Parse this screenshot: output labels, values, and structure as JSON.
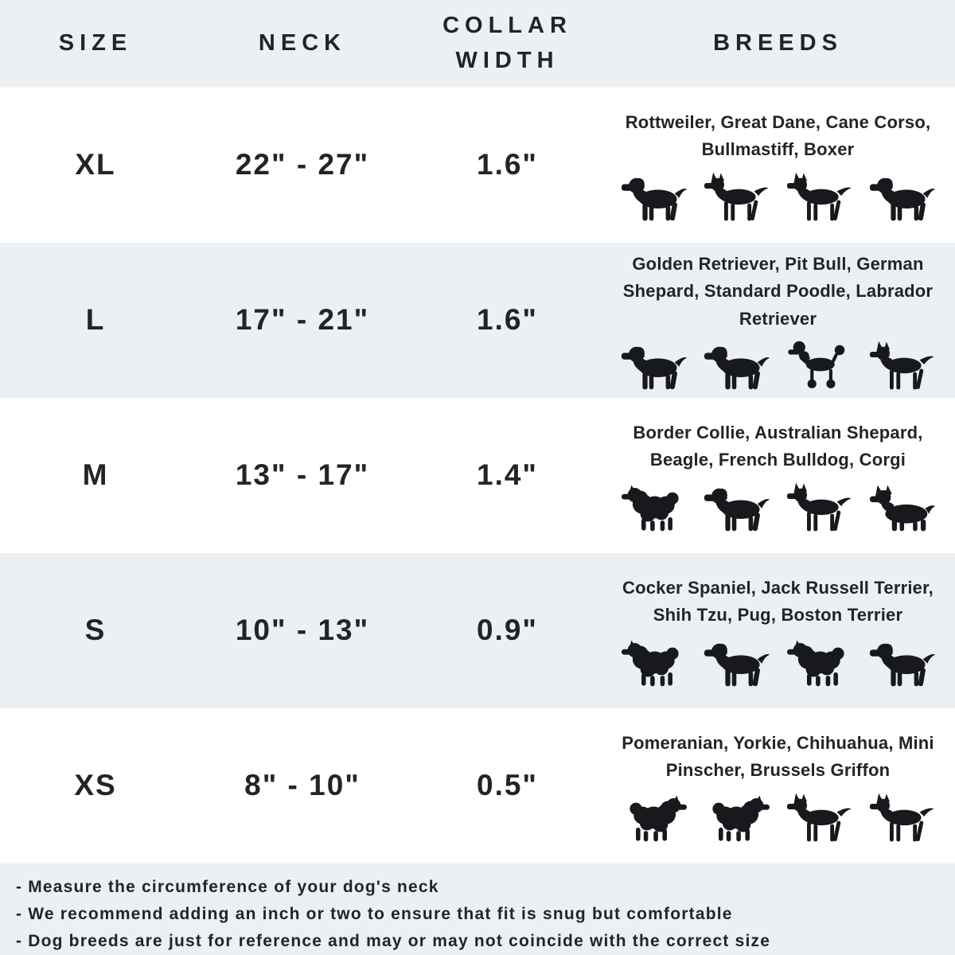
{
  "palette": {
    "row_alt_bg": "#edf0f2",
    "row_bg": "#ffffff",
    "text": "#212529",
    "silhouette": "#17191d"
  },
  "header": {
    "columns": [
      "SIZE",
      "NECK",
      "COLLAR WIDTH",
      "BREEDS"
    ]
  },
  "rows": [
    {
      "size": "XL",
      "neck": "22\" - 27\"",
      "collar_width": "1.6\"",
      "breeds": "Rottweiler, Great Dane, Cane Corso, Bullmastiff, Boxer",
      "icons": [
        {
          "name": "rottweiler-icon",
          "shape": "dog-standing"
        },
        {
          "name": "great-dane-icon",
          "shape": "dog-pointy"
        },
        {
          "name": "cane-corso-icon",
          "shape": "dog-pointy"
        },
        {
          "name": "bullmastiff-icon",
          "shape": "dog-standing"
        }
      ]
    },
    {
      "size": "L",
      "neck": "17\" - 21\"",
      "collar_width": "1.6\"",
      "breeds": "Golden Retriever, Pit Bull, German Shepard, Standard Poodle, Labrador Retriever",
      "icons": [
        {
          "name": "golden-retriever-icon",
          "shape": "dog-standing"
        },
        {
          "name": "labrador-retriever-icon",
          "shape": "dog-standing"
        },
        {
          "name": "standard-poodle-icon",
          "shape": "dog-poodle"
        },
        {
          "name": "german-shepard-icon",
          "shape": "dog-pointy"
        }
      ]
    },
    {
      "size": "M",
      "neck": "13\" - 17\"",
      "collar_width": "1.4\"",
      "breeds": "Border Collie, Australian Shepard, Beagle, French Bulldog, Corgi",
      "icons": [
        {
          "name": "australian-shepard-icon",
          "shape": "dog-fluffy"
        },
        {
          "name": "beagle-icon",
          "shape": "dog-standing"
        },
        {
          "name": "french-bulldog-icon",
          "shape": "dog-pointy"
        },
        {
          "name": "corgi-icon",
          "shape": "dog-corgi"
        }
      ]
    },
    {
      "size": "S",
      "neck": "10\" - 13\"",
      "collar_width": "0.9\"",
      "breeds": "Cocker Spaniel, Jack Russell Terrier, Shih Tzu, Pug, Boston Terrier",
      "icons": [
        {
          "name": "cocker-spaniel-icon",
          "shape": "dog-fluffy"
        },
        {
          "name": "jack-russell-terrier-icon",
          "shape": "dog-standing"
        },
        {
          "name": "shih-tzu-icon",
          "shape": "dog-fluffy"
        },
        {
          "name": "pug-icon",
          "shape": "dog-standing"
        }
      ]
    },
    {
      "size": "XS",
      "neck": "8\" - 10\"",
      "collar_width": "0.5\"",
      "breeds": "Pomeranian, Yorkie, Chihuahua, Mini Pinscher, Brussels Griffon",
      "icons": [
        {
          "name": "pomeranian-icon",
          "shape": "dog-fluffy",
          "flip": true
        },
        {
          "name": "yorkie-icon",
          "shape": "dog-fluffy",
          "flip": true
        },
        {
          "name": "chihuahua-icon",
          "shape": "dog-pointy"
        },
        {
          "name": "mini-pinscher-icon",
          "shape": "dog-pointy"
        }
      ]
    }
  ],
  "notes": [
    "- Measure the circumference of your dog's neck",
    "- We recommend adding an inch or two to ensure that fit is snug but comfortable",
    "- Dog breeds are just for reference and may or may not coincide with the correct size"
  ],
  "chart_data": {
    "type": "table",
    "columns": [
      "SIZE",
      "NECK",
      "COLLAR WIDTH",
      "BREEDS"
    ],
    "rows": [
      [
        "XL",
        "22\" - 27\"",
        "1.6\"",
        "Rottweiler, Great Dane, Cane Corso, Bullmastiff, Boxer"
      ],
      [
        "L",
        "17\" - 21\"",
        "1.6\"",
        "Golden Retriever, Pit Bull, German Shepard, Standard Poodle, Labrador Retriever"
      ],
      [
        "M",
        "13\" - 17\"",
        "1.4\"",
        "Border Collie, Australian Shepard, Beagle, French Bulldog, Corgi"
      ],
      [
        "S",
        "10\" - 13\"",
        "0.9\"",
        "Cocker Spaniel, Jack Russell Terrier, Shih Tzu, Pug, Boston Terrier"
      ],
      [
        "XS",
        "8\" - 10\"",
        "0.5\"",
        "Pomeranian, Yorkie, Chihuahua, Mini Pinscher, Brussels Griffon"
      ]
    ],
    "footnotes": [
      "- Measure the circumference of your dog's neck",
      "- We recommend adding an inch or two to ensure that fit is snug but comfortable",
      "- Dog breeds are just for reference and may or may not coincide with the correct size"
    ]
  }
}
